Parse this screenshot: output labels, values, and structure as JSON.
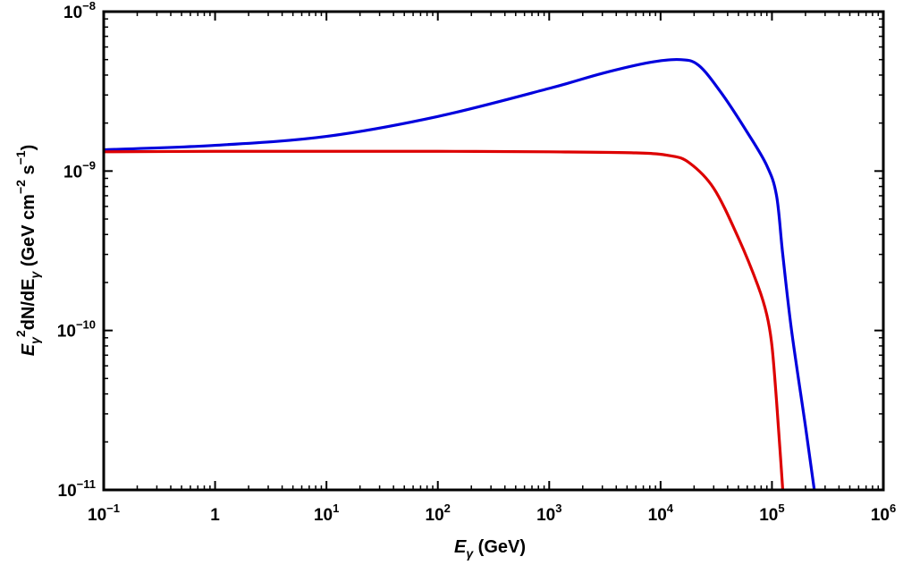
{
  "chart_data": {
    "type": "line",
    "xlabel": "E",
    "xlabel_sub": "γ",
    "xlabel_unit": " (GeV)",
    "ylabel": {
      "e": "E",
      "sub1": "γ",
      "sup1": "2",
      "mid": "dN/dE",
      "sub2": "γ",
      "unit": " (GeV cm",
      "sup2": "−2",
      "s": " s",
      "sup3": "−1",
      "close": ")"
    },
    "x_scale": "log",
    "y_scale": "log",
    "xlim": [
      0.1,
      1000000
    ],
    "ylim": [
      1e-11,
      1e-08
    ],
    "x_ticks": [
      {
        "value": 0.1,
        "base": "10",
        "exp": "−1"
      },
      {
        "value": 1,
        "base": "1",
        "exp": ""
      },
      {
        "value": 10,
        "base": "10",
        "exp": "1"
      },
      {
        "value": 100,
        "base": "10",
        "exp": "2"
      },
      {
        "value": 1000,
        "base": "10",
        "exp": "3"
      },
      {
        "value": 10000,
        "base": "10",
        "exp": "4"
      },
      {
        "value": 100000,
        "base": "10",
        "exp": "5"
      },
      {
        "value": 1000000,
        "base": "10",
        "exp": "6"
      }
    ],
    "y_ticks": [
      {
        "value": 1e-11,
        "base": "10",
        "exp": "−11"
      },
      {
        "value": 1e-10,
        "base": "10",
        "exp": "−10"
      },
      {
        "value": 1e-09,
        "base": "10",
        "exp": "−9"
      },
      {
        "value": 1e-08,
        "base": "10",
        "exp": "−8"
      }
    ],
    "grid": false,
    "legend": "none",
    "series": [
      {
        "color": "#0000dd",
        "points": [
          [
            0.1,
            1.36e-09
          ],
          [
            1,
            1.45e-09
          ],
          [
            10,
            1.65e-09
          ],
          [
            100,
            2.2e-09
          ],
          [
            1000,
            3.3e-09
          ],
          [
            3000,
            4.1e-09
          ],
          [
            8000,
            4.8e-09
          ],
          [
            15000,
            5e-09
          ],
          [
            22000,
            4.6e-09
          ],
          [
            35000,
            3.1e-09
          ],
          [
            60000,
            1.75e-09
          ],
          [
            90000,
            1.08e-09
          ],
          [
            110000,
            7e-10
          ],
          [
            125000,
            3e-10
          ],
          [
            150000,
            1e-10
          ],
          [
            200000,
            2.5e-11
          ],
          [
            240000,
            1e-11
          ]
        ]
      },
      {
        "color": "#dd0000",
        "points": [
          [
            0.1,
            1.32e-09
          ],
          [
            1,
            1.33e-09
          ],
          [
            10,
            1.33e-09
          ],
          [
            100,
            1.33e-09
          ],
          [
            1000,
            1.32e-09
          ],
          [
            6000,
            1.3e-09
          ],
          [
            12000,
            1.25e-09
          ],
          [
            18000,
            1.13e-09
          ],
          [
            30000,
            7.8e-10
          ],
          [
            50000,
            3.8e-10
          ],
          [
            75000,
            1.9e-10
          ],
          [
            90000,
            1.25e-10
          ],
          [
            100000,
            8e-11
          ],
          [
            110000,
            3.6e-11
          ],
          [
            118000,
            1.8e-11
          ],
          [
            125000,
            1e-11
          ]
        ]
      }
    ]
  }
}
